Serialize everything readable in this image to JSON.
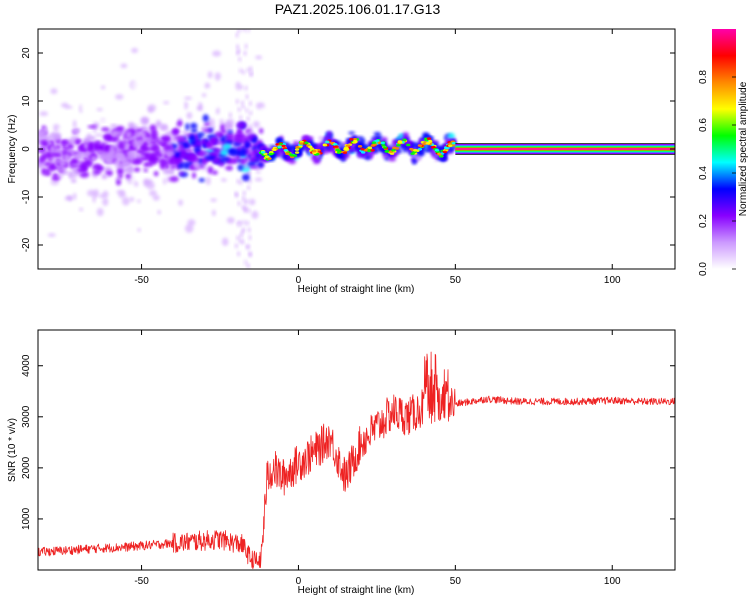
{
  "title": "PAZ1.2025.106.01.17.G13",
  "chart_data": [
    {
      "type": "heatmap",
      "xlabel": "Height of straight line (km)",
      "ylabel": "Frequency (Hz)",
      "xlim": [
        -83,
        120
      ],
      "ylim": [
        -25,
        25
      ],
      "xticks": [
        -50,
        0,
        50,
        100
      ],
      "yticks": [
        -20,
        -10,
        0,
        10,
        20
      ],
      "ridge": [
        {
          "x": -80,
          "y": -1.5
        },
        {
          "x": -70,
          "y": -1.0
        },
        {
          "x": -60,
          "y": -0.5
        },
        {
          "x": -50,
          "y": 0.0
        },
        {
          "x": -40,
          "y": -0.5
        },
        {
          "x": -30,
          "y": 0.0
        },
        {
          "x": -20,
          "y": 0.5
        },
        {
          "x": -10,
          "y": -0.5
        },
        {
          "x": 0,
          "y": 0.0
        },
        {
          "x": 10,
          "y": 0.5
        },
        {
          "x": 20,
          "y": 0.5
        },
        {
          "x": 30,
          "y": 0.5
        },
        {
          "x": 40,
          "y": 0.5
        },
        {
          "x": 50,
          "y": 0.0
        },
        {
          "x": 60,
          "y": 0.0
        },
        {
          "x": 80,
          "y": 0.0
        },
        {
          "x": 100,
          "y": 0.0
        },
        {
          "x": 120,
          "y": 0.0
        }
      ],
      "colorbar": {
        "label": "Normalized spectral amplitude",
        "range": [
          0,
          1
        ],
        "ticks": [
          0.0,
          0.2,
          0.4,
          0.6,
          0.8
        ],
        "colors": [
          "#ffffff",
          "#cc99ff",
          "#8800ff",
          "#0000ff",
          "#00ffff",
          "#00ff00",
          "#ffff00",
          "#ff8800",
          "#ff0000",
          "#ff00aa"
        ]
      },
      "grid": false
    },
    {
      "type": "line",
      "xlabel": "Height of straight line (km)",
      "ylabel": "SNR (10 * v/v)",
      "xlim": [
        -83,
        120
      ],
      "ylim": [
        0,
        4700
      ],
      "xticks": [
        -50,
        0,
        50,
        100
      ],
      "yticks": [
        1000,
        2000,
        3000,
        4000
      ],
      "color": "#ee2222",
      "series": [
        {
          "x": [
            -83,
            -75,
            -65,
            -55,
            -45,
            -35,
            -25,
            -18,
            -15,
            -12,
            -10,
            -8,
            -5,
            0,
            5,
            10,
            15,
            20,
            25,
            30,
            35,
            40,
            45,
            50,
            55,
            60,
            70,
            80,
            90,
            100,
            110,
            120
          ],
          "y": [
            350,
            380,
            420,
            450,
            500,
            550,
            600,
            500,
            200,
            150,
            1800,
            2000,
            1800,
            2100,
            2300,
            2600,
            1800,
            2500,
            2800,
            3100,
            3000,
            3200,
            3300,
            3250,
            3300,
            3350,
            3300,
            3300,
            3300,
            3320,
            3300,
            3300
          ]
        }
      ],
      "grid": false
    }
  ]
}
